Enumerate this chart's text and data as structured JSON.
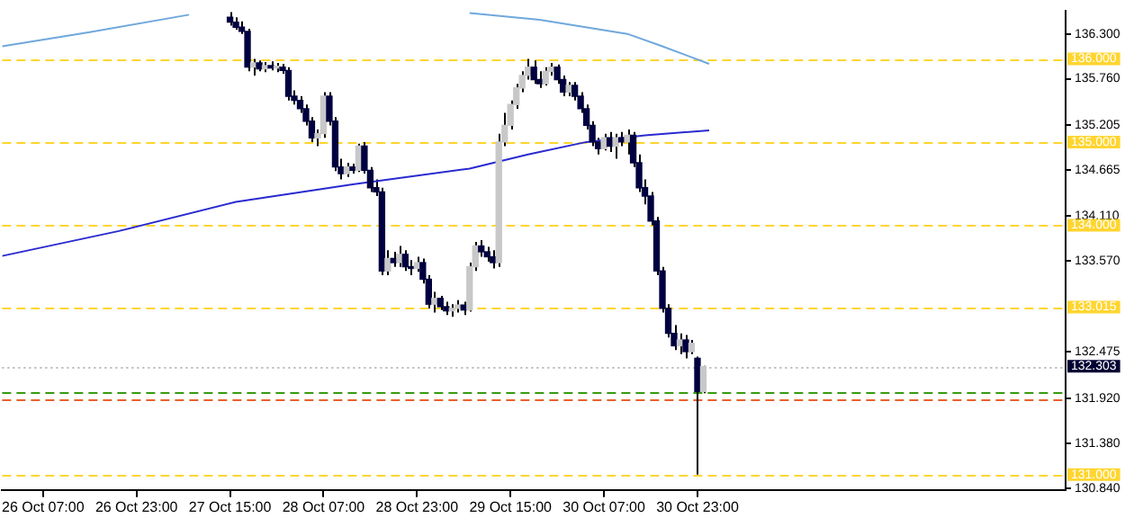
{
  "chart_data": {
    "type": "candlestick",
    "xlim": [
      "--10-26T00:00",
      "--11-02T14:00"
    ],
    "ylim": [
      130.817,
      136.573
    ],
    "xticks": [
      {
        "value": "--10-26T07:00",
        "label": "26 Oct 07:00"
      },
      {
        "value": "--10-26T23:00",
        "label": "26 Oct 23:00"
      },
      {
        "value": "--10-27T15:00",
        "label": "27 Oct 15:00"
      },
      {
        "value": "--10-28T07:00",
        "label": "28 Oct 07:00"
      },
      {
        "value": "--10-28T23:00",
        "label": "28 Oct 23:00"
      },
      {
        "value": "--10-29T15:00",
        "label": "29 Oct 15:00"
      },
      {
        "value": "--10-30T07:00",
        "label": "30 Oct 07:00"
      },
      {
        "value": "--10-30T23:00",
        "label": "30 Oct 23:00"
      }
    ],
    "yticks": [
      {
        "value": 136.3,
        "label": "136.300"
      },
      {
        "value": 135.76,
        "label": "135.760"
      },
      {
        "value": 135.205,
        "label": "135.205"
      },
      {
        "value": 134.665,
        "label": "134.665"
      },
      {
        "value": 134.11,
        "label": "134.110"
      },
      {
        "value": 133.57,
        "label": "133.570"
      },
      {
        "value": 132.475,
        "label": "132.475"
      },
      {
        "value": 131.92,
        "label": "131.920"
      },
      {
        "value": 131.38,
        "label": "131.380"
      },
      {
        "value": 130.84,
        "label": "130.840"
      }
    ],
    "grid": false,
    "legend": false,
    "series": [
      {
        "type": "candlestick",
        "color": "#000000",
        "colors": [
          "#000040",
          "#000040",
          "#000040",
          "#000040",
          "#c8c8c8",
          "#000040",
          "#c8c8c8",
          "#000040",
          "#c8c8c8",
          "#000040",
          "#000040",
          "#000040",
          "#000040",
          "#000040",
          "#000040",
          "#c8c8c8",
          "#c8c8c8",
          "#000040",
          "#000040",
          "#000040",
          "#c8c8c8",
          "#000040",
          "#c8c8c8",
          "#000040",
          "#000040",
          "#000040",
          "#000040",
          "#c8c8c8",
          "#000040",
          "#c8c8c8",
          "#000040",
          "#000040",
          "#c8c8c8",
          "#000040",
          "#000040",
          "#c8c8c8",
          "#000040",
          "#000040",
          "#c8c8c8",
          "#c8c8c8",
          "#000040",
          "#c8c8c8",
          "#c8c8c8",
          "#000040",
          "#000040",
          "#000040",
          "#c8c8c8",
          "#c8c8c8",
          "#c8c8c8",
          "#c8c8c8",
          "#c8c8c8",
          "#c8c8c8",
          "#000040",
          "#000040",
          "#c8c8c8",
          "#c8c8c8",
          "#000040",
          "#000040",
          "#c8c8c8",
          "#000040",
          "#000040",
          "#000040",
          "#000040",
          "#000040",
          "#c8c8c8",
          "#000040",
          "#c8c8c8",
          "#000040",
          "#c8c8c8",
          "#000040",
          "#000040",
          "#000040",
          "#000040",
          "#000040",
          "#000040",
          "#000040",
          "#000040",
          "#c8c8c8",
          "#000040",
          "#c8c8c8",
          "#000040",
          "#c8c8c8"
        ],
        "x": [
          "--10-27T15:00",
          "--10-27T16:00",
          "--10-27T17:00",
          "--10-27T18:00",
          "--10-27T19:00",
          "--10-27T20:00",
          "--10-27T21:00",
          "--10-27T22:00",
          "--10-27T23:00",
          "--10-28T00:00",
          "--10-28T01:00",
          "--10-28T02:00",
          "--10-28T03:00",
          "--10-28T04:00",
          "--10-28T05:00",
          "--10-28T06:00",
          "--10-28T07:00",
          "--10-28T08:00",
          "--10-28T09:00",
          "--10-28T10:00",
          "--10-28T11:00",
          "--10-28T12:00",
          "--10-28T13:00",
          "--10-28T14:00",
          "--10-28T15:00",
          "--10-28T16:00",
          "--10-28T17:00",
          "--10-28T18:00",
          "--10-28T19:00",
          "--10-28T20:00",
          "--10-28T21:00",
          "--10-28T22:00",
          "--10-28T23:00",
          "--10-29T00:00",
          "--10-29T01:00",
          "--10-29T02:00",
          "--10-29T03:00",
          "--10-29T04:00",
          "--10-29T05:00",
          "--10-29T06:00",
          "--10-29T07:00",
          "--10-29T08:00",
          "--10-29T09:00",
          "--10-29T10:00",
          "--10-29T11:00",
          "--10-29T12:00",
          "--10-29T13:00",
          "--10-29T14:00",
          "--10-29T15:00",
          "--10-29T16:00",
          "--10-29T17:00",
          "--10-29T18:00",
          "--10-29T19:00",
          "--10-29T20:00",
          "--10-29T21:00",
          "--10-29T22:00",
          "--10-29T23:00",
          "--10-30T00:00",
          "--10-30T01:00",
          "--10-30T02:00",
          "--10-30T03:00",
          "--10-30T04:00",
          "--10-30T05:00",
          "--10-30T06:00",
          "--10-30T07:00",
          "--10-30T08:00",
          "--10-30T09:00",
          "--10-30T10:00",
          "--10-30T11:00",
          "--10-30T12:00",
          "--10-30T13:00",
          "--10-30T14:00",
          "--10-30T15:00",
          "--10-30T16:00",
          "--10-30T17:00",
          "--10-30T18:00",
          "--10-30T19:00",
          "--10-30T20:00",
          "--10-30T21:00",
          "--10-30T22:00",
          "--10-30T23:00",
          "--10-31T00:00"
        ],
        "ohlc": [
          [
            136.5,
            136.56,
            136.4,
            136.44
          ],
          [
            136.44,
            136.5,
            136.35,
            136.38
          ],
          [
            136.38,
            136.45,
            136.3,
            136.33
          ],
          [
            136.33,
            136.36,
            135.85,
            135.9
          ],
          [
            135.9,
            136.0,
            135.8,
            135.95
          ],
          [
            135.95,
            135.98,
            135.85,
            135.88
          ],
          [
            135.88,
            135.96,
            135.84,
            135.92
          ],
          [
            135.92,
            135.97,
            135.86,
            135.89
          ],
          [
            135.89,
            135.95,
            135.84,
            135.9
          ],
          [
            135.9,
            135.94,
            135.82,
            135.86
          ],
          [
            135.86,
            135.9,
            135.5,
            135.55
          ],
          [
            135.55,
            135.62,
            135.45,
            135.5
          ],
          [
            135.5,
            135.55,
            135.35,
            135.4
          ],
          [
            135.4,
            135.45,
            135.2,
            135.25
          ],
          [
            135.25,
            135.3,
            135.0,
            135.05
          ],
          [
            135.05,
            135.15,
            134.95,
            135.1
          ],
          [
            135.1,
            135.6,
            135.05,
            135.55
          ],
          [
            135.55,
            135.6,
            135.2,
            135.25
          ],
          [
            135.25,
            135.3,
            134.65,
            134.7
          ],
          [
            134.7,
            134.8,
            134.55,
            134.62
          ],
          [
            134.62,
            134.75,
            134.58,
            134.7
          ],
          [
            134.7,
            134.74,
            134.62,
            134.66
          ],
          [
            134.66,
            134.98,
            134.64,
            134.95
          ],
          [
            134.95,
            135.0,
            134.62,
            134.66
          ],
          [
            134.66,
            134.7,
            134.4,
            134.45
          ],
          [
            134.45,
            134.55,
            134.35,
            134.4
          ],
          [
            134.4,
            134.45,
            133.4,
            133.45
          ],
          [
            133.45,
            133.7,
            133.4,
            133.6
          ],
          [
            133.6,
            133.68,
            133.5,
            133.55
          ],
          [
            133.55,
            133.75,
            133.5,
            133.65
          ],
          [
            133.65,
            133.7,
            133.45,
            133.5
          ],
          [
            133.5,
            133.58,
            133.4,
            133.48
          ],
          [
            133.48,
            133.62,
            133.44,
            133.55
          ],
          [
            133.55,
            133.6,
            133.3,
            133.35
          ],
          [
            133.35,
            133.4,
            133.0,
            133.05
          ],
          [
            133.05,
            133.2,
            132.95,
            133.12
          ],
          [
            133.12,
            133.15,
            132.98,
            133.02
          ],
          [
            133.02,
            133.08,
            132.92,
            132.97
          ],
          [
            132.97,
            133.05,
            132.9,
            133.0
          ],
          [
            133.0,
            133.1,
            132.95,
            133.04
          ],
          [
            133.04,
            133.08,
            132.92,
            132.98
          ],
          [
            132.98,
            133.55,
            132.96,
            133.5
          ],
          [
            133.5,
            133.8,
            133.45,
            133.75
          ],
          [
            133.75,
            133.82,
            133.62,
            133.68
          ],
          [
            133.68,
            133.74,
            133.56,
            133.62
          ],
          [
            133.62,
            133.7,
            133.48,
            133.55
          ],
          [
            133.55,
            135.1,
            133.5,
            135.0
          ],
          [
            135.0,
            135.35,
            134.95,
            135.2
          ],
          [
            135.2,
            135.5,
            135.15,
            135.45
          ],
          [
            135.45,
            135.7,
            135.4,
            135.65
          ],
          [
            135.65,
            135.85,
            135.6,
            135.8
          ],
          [
            135.8,
            136.0,
            135.75,
            135.9
          ],
          [
            135.9,
            135.98,
            135.7,
            135.75
          ],
          [
            135.75,
            135.85,
            135.65,
            135.7
          ],
          [
            135.7,
            135.9,
            135.68,
            135.85
          ],
          [
            135.85,
            135.95,
            135.8,
            135.9
          ],
          [
            135.9,
            135.93,
            135.7,
            135.75
          ],
          [
            135.75,
            135.8,
            135.55,
            135.6
          ],
          [
            135.6,
            135.72,
            135.55,
            135.68
          ],
          [
            135.68,
            135.72,
            135.5,
            135.55
          ],
          [
            135.55,
            135.6,
            135.35,
            135.4
          ],
          [
            135.4,
            135.45,
            135.15,
            135.2
          ],
          [
            135.2,
            135.25,
            134.95,
            135.0
          ],
          [
            135.0,
            135.05,
            134.85,
            134.92
          ],
          [
            134.92,
            135.1,
            134.9,
            135.05
          ],
          [
            135.05,
            135.12,
            134.88,
            134.95
          ],
          [
            134.95,
            135.1,
            134.8,
            135.05
          ],
          [
            135.05,
            135.12,
            134.95,
            135.0
          ],
          [
            135.0,
            135.15,
            134.85,
            135.08
          ],
          [
            135.08,
            135.12,
            134.7,
            134.75
          ],
          [
            134.75,
            134.85,
            134.4,
            134.45
          ],
          [
            134.45,
            134.55,
            134.25,
            134.35
          ],
          [
            134.35,
            134.4,
            134.0,
            134.05
          ],
          [
            134.05,
            134.1,
            133.4,
            133.45
          ],
          [
            133.45,
            133.5,
            132.95,
            133.0
          ],
          [
            133.0,
            133.05,
            132.65,
            132.7
          ],
          [
            132.7,
            132.8,
            132.5,
            132.55
          ],
          [
            132.55,
            132.7,
            132.45,
            132.62
          ],
          [
            132.62,
            132.68,
            132.4,
            132.48
          ],
          [
            132.48,
            132.62,
            132.45,
            132.58
          ],
          [
            132.4,
            132.42,
            131.0,
            132.0
          ],
          [
            132.0,
            132.31,
            131.98,
            132.3
          ]
        ]
      },
      {
        "type": "line",
        "color": "#6fa8dc",
        "x": [
          "--10-26T00:00",
          "--10-26T15:00",
          "--10-27T08:00",
          "--10-28T08:00",
          "--10-29T08:00",
          "--10-29T20:00",
          "--10-30T11:00",
          "--10-30T17:00",
          "--10-31T01:00"
        ],
        "values": [
          136.15,
          136.32,
          136.53,
          null,
          136.55,
          136.47,
          136.3,
          136.15,
          135.94
        ]
      },
      {
        "type": "line",
        "color": "#2a2ad0",
        "x": [
          "--10-26T00:00",
          "--10-26T20:00",
          "--10-27T16:00",
          "--10-28T12:00",
          "--10-29T08:00",
          "--10-29T18:00",
          "--10-30T04:00",
          "--10-30T14:00",
          "--10-31T01:00"
        ],
        "values": [
          133.63,
          133.93,
          134.28,
          134.49,
          134.68,
          134.85,
          135.0,
          135.08,
          135.14
        ]
      }
    ],
    "ref_lines": [
      {
        "axis": "y",
        "value": 136.0,
        "label": "136.000",
        "color": "#ffd530",
        "line_style": "dashed"
      },
      {
        "axis": "y",
        "value": 135.0,
        "label": "135.000",
        "color": "#ffd530",
        "line_style": "dashed"
      },
      {
        "axis": "y",
        "value": 134.0,
        "label": "134.000",
        "color": "#ffd530",
        "line_style": "dashed"
      },
      {
        "axis": "y",
        "value": 133.015,
        "label": "133.015",
        "color": "#ffd530",
        "line_style": "dashed"
      },
      {
        "axis": "y",
        "value": 131.0,
        "label": "131.000",
        "color": "#ffd530",
        "line_style": "dashed"
      },
      {
        "axis": "y",
        "value": 132.0,
        "color": "#3a9a10",
        "line_style": "dashed"
      },
      {
        "axis": "y",
        "value": 131.9,
        "color": "#e86030",
        "line_style": "dashed"
      },
      {
        "axis": "y",
        "value": 132.303,
        "label": "132.303",
        "color": "#b8b8b8",
        "line_style": "dotted"
      }
    ]
  }
}
